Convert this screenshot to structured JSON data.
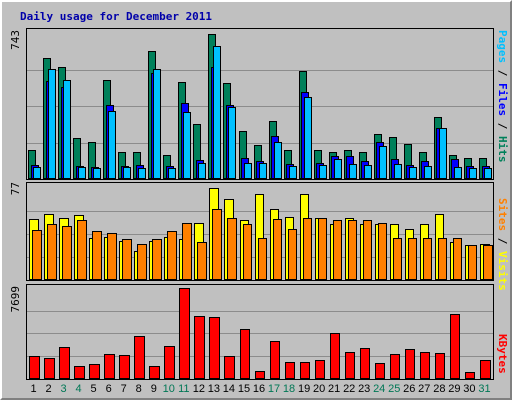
{
  "title": "Daily usage for December 2011",
  "axis": {
    "top_max_label": "743",
    "mid_max_label": "77",
    "bottom_max_label": "7699",
    "right_labels": {
      "pages": "Pages",
      "files": "Files",
      "hits": "Hits",
      "sep": " / ",
      "sites": "Sites",
      "visits": "Visits",
      "kbytes": "KBytes"
    }
  },
  "colors": {
    "hits": "#00805a",
    "files": "#0000ff",
    "pages": "#00c0ff",
    "visits": "#ffff00",
    "sites": "#ff8000",
    "kbytes": "#ff0000",
    "weekday_label": "#000000",
    "weekend_label": "#007755"
  },
  "chart_data": {
    "type": "bar",
    "title": "Daily usage for December 2011",
    "categories": [
      "1",
      "2",
      "3",
      "4",
      "5",
      "6",
      "7",
      "8",
      "9",
      "10",
      "11",
      "12",
      "13",
      "14",
      "15",
      "16",
      "17",
      "18",
      "19",
      "20",
      "21",
      "22",
      "23",
      "24",
      "25",
      "26",
      "27",
      "28",
      "29",
      "30",
      "31"
    ],
    "weekend_days": [
      "3",
      "4",
      "10",
      "11",
      "17",
      "18",
      "24",
      "25",
      "31"
    ],
    "panels": [
      {
        "name": "top",
        "ymax": 743,
        "series": [
          {
            "name": "Hits",
            "values": [
              150,
              618,
              570,
              210,
              190,
              505,
              137,
              137,
              655,
              125,
              498,
              280,
              743,
              490,
              245,
              175,
              297,
              147,
              550,
              150,
              137,
              147,
              137,
              229,
              213,
              180,
              137,
              318,
              125,
              105,
              105
            ]
          },
          {
            "name": "Files",
            "values": [
              70,
              500,
              470,
              65,
              60,
              380,
              65,
              70,
              540,
              65,
              390,
              95,
              570,
              380,
              110,
              90,
              220,
              75,
              445,
              80,
              120,
              120,
              90,
              190,
              100,
              70,
              90,
              260,
              100,
              65,
              65
            ]
          },
          {
            "name": "Pages",
            "values": [
              60,
              560,
              505,
              60,
              55,
              350,
              60,
              55,
              560,
              55,
              340,
              80,
              680,
              370,
              80,
              80,
              190,
              65,
              420,
              70,
              100,
              75,
              70,
              170,
              75,
              60,
              65,
              260,
              60,
              55,
              55
            ]
          }
        ]
      },
      {
        "name": "middle",
        "ymax": 77,
        "series": [
          {
            "name": "Visits",
            "values": [
              51,
              55,
              52,
              54,
              35,
              36,
              33,
              24,
              33,
              36,
              34,
              48,
              77,
              68,
              50,
              72,
              59,
              53,
              72,
              52,
              47,
              52,
              47,
              47,
              47,
              43,
              47,
              55,
              32,
              29,
              30
            ]
          },
          {
            "name": "Sites",
            "values": [
              42,
              47,
              45,
              50,
              41,
              39,
              34,
              30,
              34,
              41,
              48,
              32,
              59,
              52,
              47,
              35,
              51,
              43,
              52,
              52,
              50,
              50,
              50,
              48,
              35,
              35,
              35,
              35,
              35,
              29,
              29
            ]
          }
        ]
      },
      {
        "name": "bottom",
        "ymax": 7699,
        "series": [
          {
            "name": "KBytes",
            "values": [
              1950,
              1780,
              2740,
              1100,
              1250,
              2100,
              1990,
              3600,
              1060,
              2800,
              7699,
              5300,
              5200,
              1930,
              4260,
              720,
              3250,
              1460,
              1460,
              1600,
              3900,
              2280,
              2580,
              1390,
              2150,
              2560,
              2280,
              2220,
              5530,
              620,
              1580
            ]
          }
        ]
      }
    ]
  }
}
